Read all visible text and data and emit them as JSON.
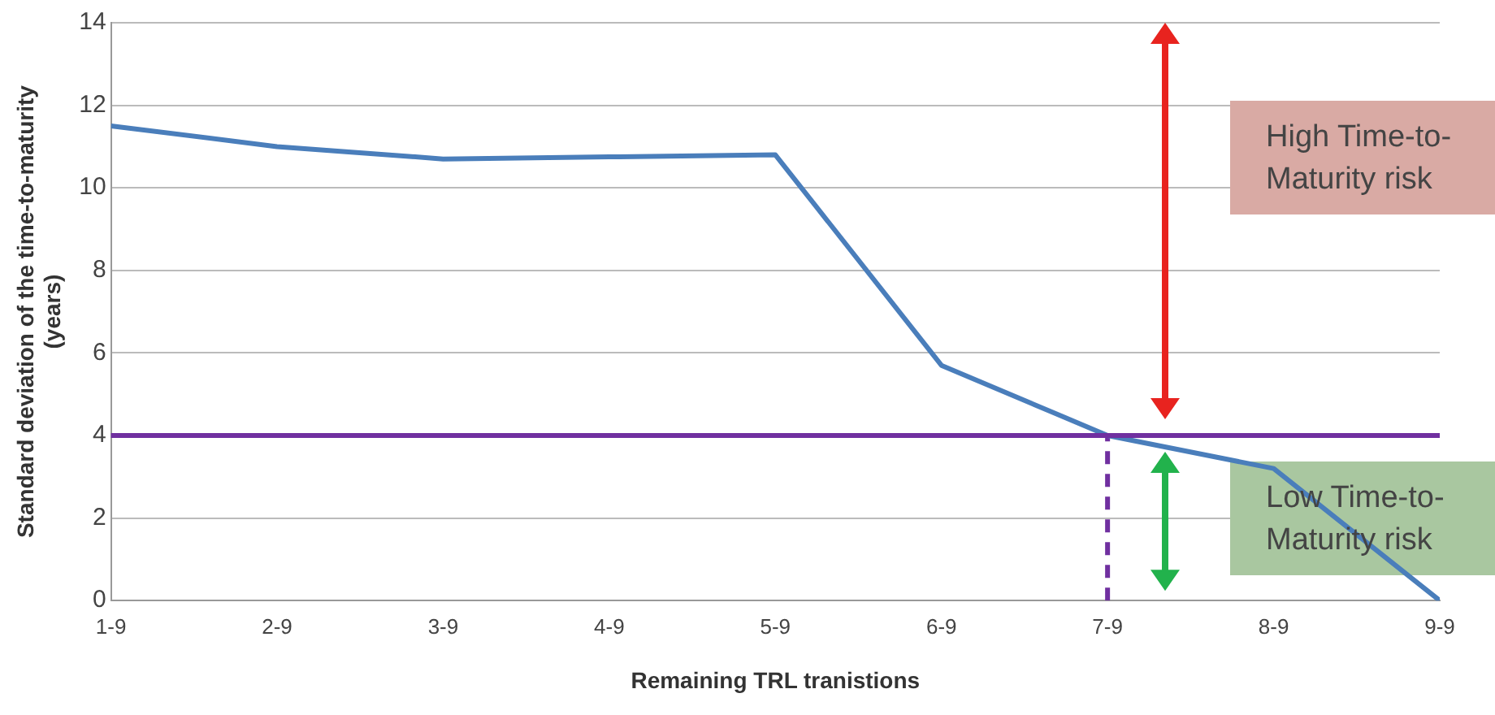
{
  "chart_data": {
    "type": "line",
    "xlabel": "Remaining TRL tranistions",
    "ylabel": "Standard deviation of the time-to-maturity\n(years)",
    "categories": [
      "1-9",
      "2-9",
      "3-9",
      "4-9",
      "5-9",
      "6-9",
      "7-9",
      "8-9",
      "9-9"
    ],
    "series": [
      {
        "color": "#4a7ebb",
        "values": [
          11.5,
          11.0,
          10.7,
          10.75,
          10.8,
          5.7,
          4.0,
          3.2,
          0
        ]
      },
      {
        "type": "line",
        "color": "#7030a0",
        "line_style": "dashed",
        "x": [
          "7-9",
          "7-9"
        ],
        "values": [
          0,
          4
        ]
      }
    ],
    "ylim": [
      0,
      14
    ],
    "yticks": [
      0,
      2,
      4,
      6,
      8,
      10,
      12,
      14
    ],
    "grid": "y",
    "legend": false,
    "marker": "none",
    "line_style": "solid",
    "ref_lines": [
      {
        "axis": "y",
        "value": 4,
        "color": "#7030a0"
      }
    ],
    "annotations": [
      "High Time-to-Maturity risk",
      "Low Time-to-Maturity risk"
    ]
  }
}
